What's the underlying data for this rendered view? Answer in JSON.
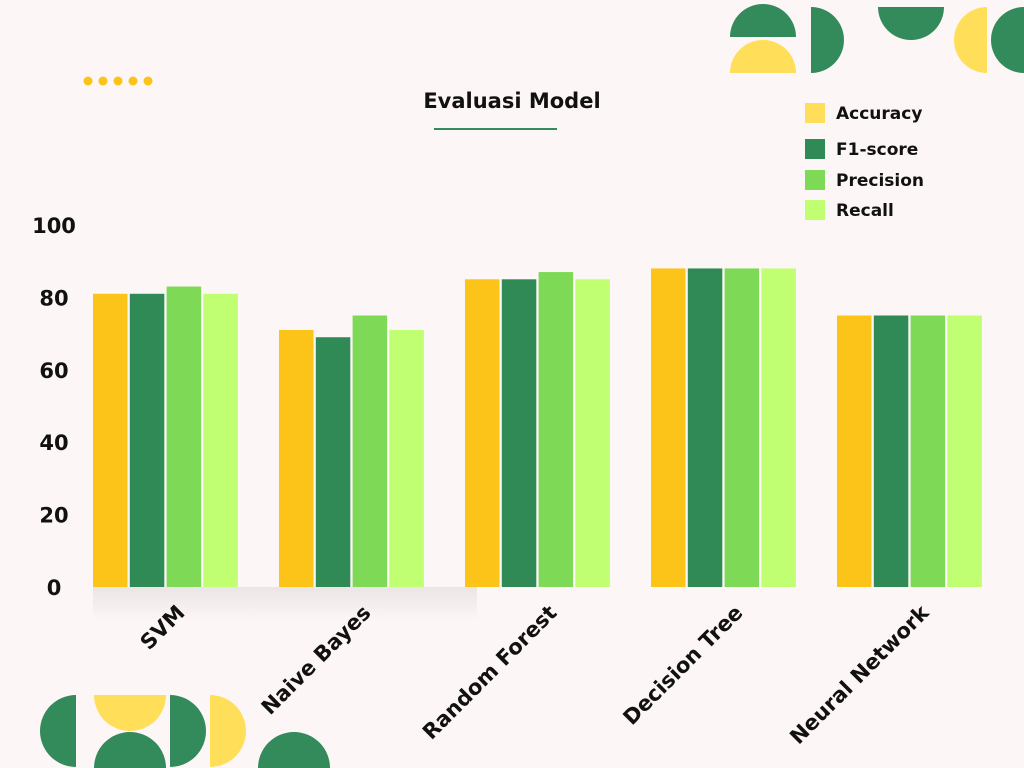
{
  "chart_data": {
    "type": "bar",
    "title": "Evaluasi Model",
    "categories": [
      "SVM",
      "Naive Bayes",
      "Random Forest",
      "Decision Tree",
      "Neural Network"
    ],
    "series": [
      {
        "name": "Accuracy",
        "color": "#fcc419",
        "values": [
          81,
          71,
          85,
          88,
          75
        ]
      },
      {
        "name": "F1-score",
        "color": "#2f8a56",
        "values": [
          81,
          69,
          85,
          88,
          75
        ]
      },
      {
        "name": "Precision",
        "color": "#7ed957",
        "values": [
          83,
          75,
          87,
          88,
          75
        ]
      },
      {
        "name": "Recall",
        "color": "#c1ff72",
        "values": [
          81,
          71,
          85,
          88,
          75
        ]
      }
    ],
    "legend_colors": [
      "#ffde59",
      "#2f8a56",
      "#7ed957",
      "#c1ff72"
    ],
    "ylim": [
      0,
      100
    ],
    "yticks": [
      0,
      20,
      40,
      60,
      80,
      100
    ],
    "legend_position": "top-right",
    "grid": false
  },
  "decor_colors": {
    "green": "#338a5b",
    "yellow": "#ffde59",
    "dots": "#fcc419",
    "underline": "#338a5b"
  }
}
